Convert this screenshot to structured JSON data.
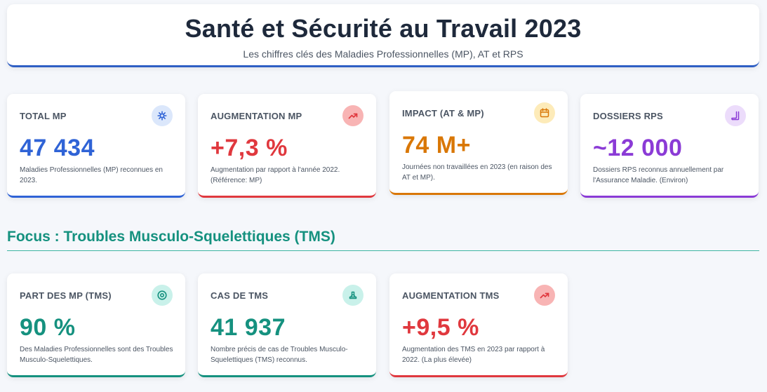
{
  "header": {
    "title": "Santé et Sécurité au Travail 2023",
    "subtitle": "Les chiffres clés des Maladies Professionnelles (MP), AT et RPS"
  },
  "kpis": [
    {
      "label": "TOTAL MP",
      "value": "47 434",
      "desc": "Maladies Professionnelles (MP) reconnues en 2023.",
      "icon": "virus-icon",
      "color": "#2f63d6",
      "icon_bg": "#dbe7fb"
    },
    {
      "label": "AUGMENTATION MP",
      "value": "+7,3 %",
      "desc": "Augmentation par rapport à l'année 2022. (Référence: MP)",
      "icon": "trending-up-icon",
      "color": "#e0383e",
      "icon_bg": "#f8b4b4"
    },
    {
      "label": "IMPACT (AT & MP)",
      "value": "74 M+",
      "desc": "Journées non travaillées en 2023 (en raison des AT et MP).",
      "icon": "calendar-icon",
      "color": "#d97706",
      "icon_bg": "#fdebb9"
    },
    {
      "label": "DOSSIERS RPS",
      "value": "~12 000",
      "desc": "Dossiers RPS reconnus annuellement par l'Assurance Maladie. (Environ)",
      "icon": "file-icon",
      "color": "#8b3bd6",
      "icon_bg": "#ecdcfb"
    }
  ],
  "focus": {
    "title": "Focus : Troubles Musculo-Squelettiques (TMS)"
  },
  "tms": [
    {
      "label": "PART DES MP (TMS)",
      "value": "90 %",
      "desc": "Des Maladies Professionnelles sont des Troubles Musculo-Squelettiques.",
      "icon": "target-icon",
      "color": "#15917f",
      "icon_bg": "#c9f1ea"
    },
    {
      "label": "CAS DE TMS",
      "value": "41 937",
      "desc": "Nombre précis de cas de Troubles Musculo-Squelettiques (TMS) reconnus.",
      "icon": "stamp-icon",
      "color": "#15917f",
      "icon_bg": "#c9f1ea"
    },
    {
      "label": "AUGMENTATION TMS",
      "value": "+9,5 %",
      "desc": "Augmentation des TMS en 2023 par rapport à 2022. (La plus élevée)",
      "icon": "trending-up-icon",
      "color": "#e0383e",
      "icon_bg": "#f8b4b4"
    }
  ]
}
